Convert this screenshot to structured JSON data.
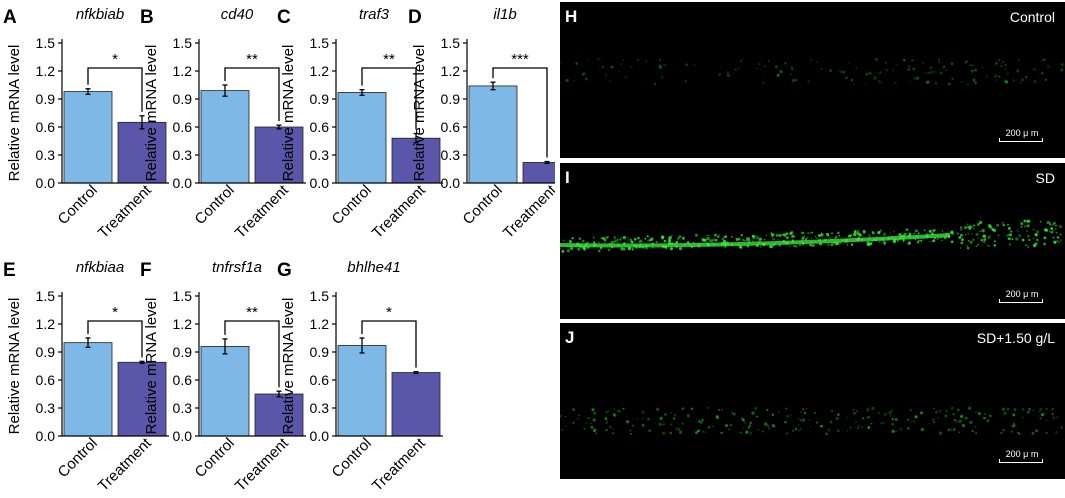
{
  "chart_data": [
    {
      "panel": "A",
      "type": "bar",
      "title": "nfkbiab",
      "categories": [
        "Control",
        "Treatment"
      ],
      "values": [
        0.98,
        0.65
      ],
      "errors": [
        0.03,
        0.07
      ],
      "significance": "*",
      "ylabel": "Relative mRNA level",
      "ylim": [
        0,
        1.5
      ],
      "yticks": [
        "0.0",
        "0.3",
        "0.6",
        "0.9",
        "1.2",
        "1.5"
      ]
    },
    {
      "panel": "B",
      "type": "bar",
      "title": "cd40",
      "categories": [
        "Control",
        "Treatment"
      ],
      "values": [
        0.99,
        0.6
      ],
      "errors": [
        0.06,
        0.02
      ],
      "significance": "**",
      "ylabel": "Relative mRNA level",
      "ylim": [
        0,
        1.5
      ],
      "yticks": [
        "0.0",
        "0.3",
        "0.6",
        "0.9",
        "1.2",
        "1.5"
      ]
    },
    {
      "panel": "C",
      "type": "bar",
      "title": "traf3",
      "categories": [
        "Control",
        "Treatment"
      ],
      "values": [
        0.97,
        0.48
      ],
      "errors": [
        0.03,
        0.05
      ],
      "significance": "**",
      "ylabel": "Relative mRNA level",
      "ylim": [
        0,
        1.5
      ],
      "yticks": [
        "0.0",
        "0.3",
        "0.6",
        "0.9",
        "1.2",
        "1.5"
      ]
    },
    {
      "panel": "D",
      "type": "bar",
      "title": "il1b",
      "categories": [
        "Control",
        "Treatment"
      ],
      "values": [
        1.04,
        0.22
      ],
      "errors": [
        0.04,
        0.01
      ],
      "significance": "***",
      "ylabel": "Relative mRNA level",
      "ylim": [
        0,
        1.5
      ],
      "yticks": [
        "0.0",
        "0.3",
        "0.6",
        "0.9",
        "1.2",
        "1.5"
      ]
    },
    {
      "panel": "E",
      "type": "bar",
      "title": "nfkbiaa",
      "categories": [
        "Control",
        "Treatment"
      ],
      "values": [
        1.0,
        0.79
      ],
      "errors": [
        0.05,
        0.01
      ],
      "significance": "*",
      "ylabel": "Relative mRNA level",
      "ylim": [
        0,
        1.5
      ],
      "yticks": [
        "0.0",
        "0.3",
        "0.6",
        "0.9",
        "1.2",
        "1.5"
      ]
    },
    {
      "panel": "F",
      "type": "bar",
      "title": "tnfrsf1a",
      "categories": [
        "Control",
        "Treatment"
      ],
      "values": [
        0.96,
        0.45
      ],
      "errors": [
        0.08,
        0.03
      ],
      "significance": "**",
      "ylabel": "Relative mRNA level",
      "ylim": [
        0,
        1.5
      ],
      "yticks": [
        "0.0",
        "0.3",
        "0.6",
        "0.9",
        "1.2",
        "1.5"
      ]
    },
    {
      "panel": "G",
      "type": "bar",
      "title": "bhlhe41",
      "categories": [
        "Control",
        "Treatment"
      ],
      "values": [
        0.97,
        0.68
      ],
      "errors": [
        0.08,
        0.01
      ],
      "significance": "*",
      "ylabel": "Relative mRNA level",
      "ylim": [
        0,
        1.5
      ],
      "yticks": [
        "0.0",
        "0.3",
        "0.6",
        "0.9",
        "1.2",
        "1.5"
      ]
    }
  ],
  "colors": {
    "control": "#7db8e6",
    "treatment": "#5a56aa",
    "axis": "#000000"
  },
  "micrographs": [
    {
      "panel": "H",
      "condition": "Control",
      "scale_bar": "200 μ m",
      "signal": "faint"
    },
    {
      "panel": "I",
      "condition": "SD",
      "scale_bar": "200 μ m",
      "signal": "strong"
    },
    {
      "panel": "J",
      "condition": "SD+1.50 g/L",
      "scale_bar": "200 μ m",
      "signal": "moderate"
    }
  ]
}
